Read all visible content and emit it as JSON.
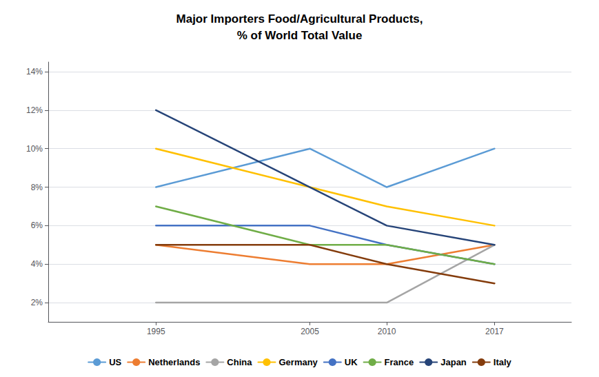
{
  "chart_data": {
    "type": "line",
    "title": "Major Importers Food/Agricultural Products,\n% of World Total Value",
    "x": [
      1995,
      2005,
      2010,
      2017
    ],
    "series": [
      {
        "name": "US",
        "color": "#5B9BD5",
        "values": [
          0.08,
          0.1,
          0.08,
          0.1
        ]
      },
      {
        "name": "Netherlands",
        "color": "#ED7D31",
        "values": [
          0.05,
          0.04,
          0.04,
          0.05
        ]
      },
      {
        "name": "China",
        "color": "#A5A5A5",
        "values": [
          0.02,
          0.02,
          0.02,
          0.05
        ]
      },
      {
        "name": "Germany",
        "color": "#FFC000",
        "values": [
          0.1,
          0.08,
          0.07,
          0.06
        ]
      },
      {
        "name": "UK",
        "color": "#4472C4",
        "values": [
          0.06,
          0.06,
          0.05,
          0.04
        ]
      },
      {
        "name": "France",
        "color": "#70AD47",
        "values": [
          0.07,
          0.05,
          0.05,
          0.04
        ]
      },
      {
        "name": "Japan",
        "color": "#264478",
        "values": [
          0.12,
          0.08,
          0.06,
          0.05
        ]
      },
      {
        "name": "Italy",
        "color": "#843C0C",
        "values": [
          0.05,
          0.05,
          0.04,
          0.03
        ]
      }
    ],
    "xlim": [
      1988,
      2022
    ],
    "xticks": [
      1995,
      2005,
      2010,
      2017
    ],
    "ylim": [
      0.01,
      0.145
    ],
    "yticks": [
      {
        "value": 0.02,
        "label": "2%"
      },
      {
        "value": 0.04,
        "label": "4%"
      },
      {
        "value": 0.06,
        "label": "6%"
      },
      {
        "value": 0.08,
        "label": "8%"
      },
      {
        "value": 0.1,
        "label": "10%"
      },
      {
        "value": 0.12,
        "label": "12%"
      },
      {
        "value": 0.14,
        "label": "14%"
      }
    ],
    "grid": true,
    "legend": "bottom",
    "marker": "none"
  }
}
